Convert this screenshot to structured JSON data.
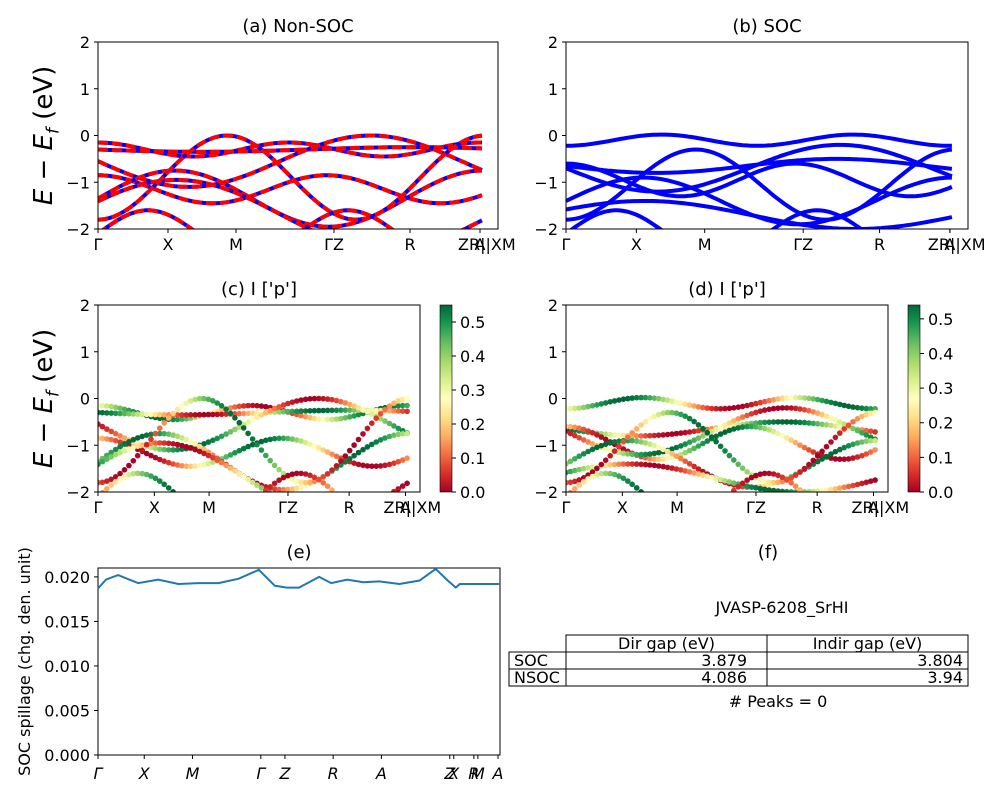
{
  "chart_data": [
    {
      "id": "a",
      "type": "line",
      "title": "(a) Non-SOC",
      "ylabel": "$E - E_f$ (eV)",
      "ylim": [
        -2,
        2
      ],
      "yticks": [
        "2",
        "1",
        "0",
        "−1",
        "−2"
      ],
      "xticks": [
        "Γ",
        "X",
        "M",
        "ΓZ",
        "R",
        "A",
        "ZR||XM"
      ],
      "colors": {
        "primary": "#0000ff",
        "overlay": "#ff0000"
      },
      "bands_style": "blue solid with red dashed overlay"
    },
    {
      "id": "b",
      "type": "line",
      "title": "(b) SOC",
      "ylim": [
        -2,
        2
      ],
      "yticks": [
        "2",
        "1",
        "0",
        "−1",
        "−2"
      ],
      "xticks": [
        "Γ",
        "X",
        "M",
        "ΓZ",
        "R",
        "A",
        "ZR||XM"
      ],
      "colors": {
        "primary": "#0000ff"
      }
    },
    {
      "id": "c",
      "type": "scatter",
      "title": "(c)  I ['p']",
      "ylabel": "$E - E_f$ (eV)",
      "ylim": [
        -2,
        2
      ],
      "yticks": [
        "2",
        "1",
        "0",
        "−1",
        "−2"
      ],
      "xticks": [
        "Γ",
        "X",
        "M",
        "ΓZ",
        "R",
        "A",
        "ZR||XM"
      ],
      "colorbar": {
        "ticks": [
          "0.0",
          "0.1",
          "0.2",
          "0.3",
          "0.4",
          "0.5"
        ],
        "range": [
          0,
          0.55
        ],
        "colormap": "RdYlGn"
      }
    },
    {
      "id": "d",
      "type": "scatter",
      "title": "(d) I ['p']",
      "ylim": [
        -2,
        2
      ],
      "yticks": [
        "2",
        "1",
        "0",
        "−1",
        "−2"
      ],
      "xticks": [
        "Γ",
        "X",
        "M",
        "ΓZ",
        "R",
        "A",
        "ZR||XM"
      ],
      "colorbar": {
        "ticks": [
          "0.0",
          "0.1",
          "0.2",
          "0.3",
          "0.4",
          "0.5"
        ],
        "range": [
          0,
          0.54
        ],
        "colormap": "RdYlGn"
      }
    },
    {
      "id": "e",
      "type": "line",
      "title": "(e)",
      "ylabel": "SOC spillage (chg. den. unit)",
      "ylim": [
        0,
        0.021
      ],
      "yticks": [
        "0.020",
        "0.015",
        "0.010",
        "0.005",
        "0.000"
      ],
      "xticks": [
        "Γ",
        "X",
        "M",
        "Γ",
        "Z",
        "R",
        "A",
        "Z",
        "X",
        "R",
        "M",
        "A"
      ],
      "colors": {
        "line": "#1f77b4"
      },
      "series": [
        {
          "x": [
            0,
            0.02,
            0.05,
            0.1,
            0.15,
            0.2,
            0.25,
            0.3,
            0.35,
            0.4,
            0.44,
            0.47,
            0.5,
            0.55,
            0.58,
            0.62,
            0.66,
            0.7,
            0.75,
            0.8,
            0.84,
            0.87,
            0.89,
            0.9,
            0.93,
            0.96,
            1.0
          ],
          "values": [
            0.0187,
            0.0197,
            0.0202,
            0.0193,
            0.0197,
            0.0192,
            0.0193,
            0.0193,
            0.0198,
            0.0208,
            0.019,
            0.0188,
            0.0188,
            0.02,
            0.0193,
            0.0197,
            0.0194,
            0.0195,
            0.0192,
            0.0196,
            0.0209,
            0.0196,
            0.0188,
            0.0192,
            0.0192,
            0.0192,
            0.0192
          ]
        }
      ]
    },
    {
      "id": "f",
      "type": "table",
      "title": "(f)",
      "heading": "JVASP-6208_SrHI",
      "columns": [
        "Dir gap (eV)",
        "Indir gap (eV)"
      ],
      "rows": [
        {
          "label": "SOC",
          "values": [
            "3.879",
            "3.804"
          ]
        },
        {
          "label": "NSOC",
          "values": [
            "4.086",
            "3.94"
          ]
        }
      ],
      "footer": "# Peaks = 0"
    }
  ]
}
